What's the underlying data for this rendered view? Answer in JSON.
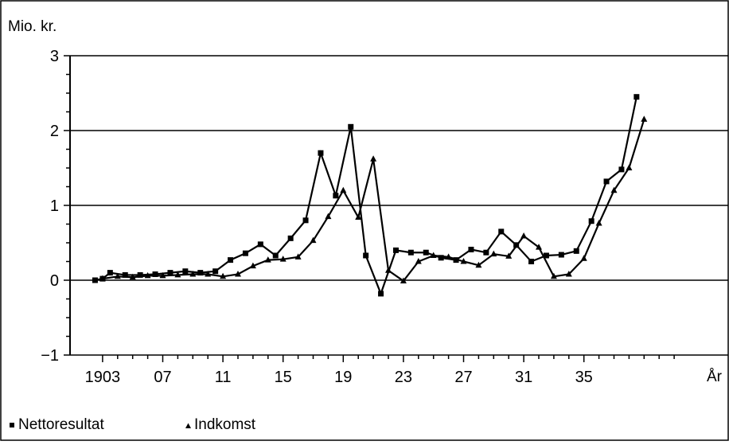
{
  "chart_data": {
    "type": "line",
    "ylabel": "Mio. kr.",
    "xlabel": "År",
    "ylim": [
      -1,
      3
    ],
    "xlim": [
      1902,
      1942
    ],
    "yticks": [
      -1,
      0,
      1,
      2,
      3
    ],
    "ytick_labels": [
      "−1",
      "0",
      "1",
      "2",
      "3"
    ],
    "xticks": [
      1903,
      1907,
      1911,
      1915,
      1919,
      1923,
      1927,
      1931,
      1935
    ],
    "xtick_labels": [
      "1903",
      "07",
      "11",
      "15",
      "19",
      "23",
      "27",
      "31",
      "35"
    ],
    "grid": "horizontal",
    "legend_position": "bottom-left",
    "colors": {
      "line": "#000000",
      "grid": "#000000"
    },
    "x": [
      1903,
      1904,
      1905,
      1906,
      1907,
      1908,
      1909,
      1910,
      1911,
      1912,
      1913,
      1914,
      1915,
      1916,
      1917,
      1918,
      1919,
      1920,
      1921,
      1922,
      1923,
      1924,
      1925,
      1926,
      1927,
      1928,
      1929,
      1930,
      1931,
      1932,
      1933,
      1934,
      1935,
      1936,
      1937,
      1938,
      1939
    ],
    "series": [
      {
        "name": "Nettoresultat",
        "marker": "square",
        "x": [
          1902.5,
          1903,
          1903.5,
          1904.5,
          1905.5,
          1906.5,
          1907.5,
          1908.5,
          1909.5,
          1910.5,
          1911.5,
          1912.5,
          1913.5,
          1914.5,
          1915.5,
          1916.5,
          1917.5,
          1918.5,
          1919.5,
          1920.5,
          1921.5,
          1922.5,
          1923.5,
          1924.5,
          1925.5,
          1926.5,
          1927.5,
          1928.5,
          1929.5,
          1930.5,
          1931.5,
          1932.5,
          1933.5,
          1934.5,
          1935.5,
          1936.5,
          1937.5,
          1938.5
        ],
        "values": [
          0.0,
          0.02,
          0.1,
          0.07,
          0.07,
          0.08,
          0.1,
          0.12,
          0.1,
          0.12,
          0.27,
          0.36,
          0.48,
          0.33,
          0.56,
          0.8,
          1.7,
          1.13,
          2.05,
          0.33,
          -0.18,
          0.4,
          0.37,
          0.37,
          0.3,
          0.27,
          0.41,
          0.37,
          0.65,
          0.47,
          0.25,
          0.33,
          0.34,
          0.39,
          0.79,
          1.32,
          1.48,
          2.45
        ]
      },
      {
        "name": "Indkomst",
        "marker": "triangle",
        "x": [
          1903,
          1904,
          1905,
          1906,
          1907,
          1908,
          1909,
          1910,
          1911,
          1912,
          1913,
          1914,
          1915,
          1916,
          1917,
          1918,
          1919,
          1920,
          1921,
          1922,
          1923,
          1924,
          1925,
          1926,
          1927,
          1928,
          1929,
          1930,
          1931,
          1932,
          1933,
          1934,
          1935,
          1936,
          1937,
          1938,
          1939
        ],
        "values": [
          0.02,
          0.05,
          0.04,
          0.06,
          0.06,
          0.07,
          0.08,
          0.08,
          0.05,
          0.08,
          0.19,
          0.27,
          0.28,
          0.31,
          0.53,
          0.85,
          1.2,
          0.84,
          1.62,
          0.13,
          -0.01,
          0.25,
          0.33,
          0.31,
          0.25,
          0.2,
          0.35,
          0.32,
          0.59,
          0.44,
          0.05,
          0.08,
          0.29,
          0.76,
          1.2,
          1.5,
          2.15
        ]
      }
    ]
  }
}
